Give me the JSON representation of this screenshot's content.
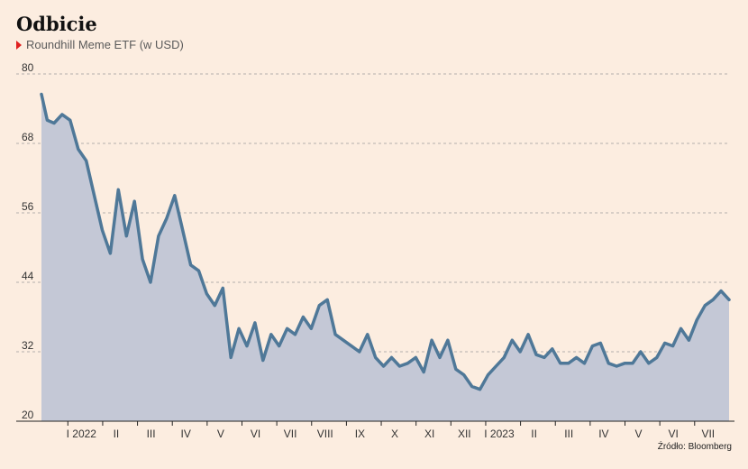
{
  "title": "Odbicie",
  "subtitle": "Roundhill Meme ETF (w USD)",
  "source": "Źródło: Bloomberg",
  "colors": {
    "background": "#fcede0",
    "line": "#4f7898",
    "area": "#c4c8d6",
    "legend_marker": "#e02020",
    "grid": "#9a9a9a"
  },
  "chart_data": {
    "type": "area",
    "ylim": [
      20,
      80
    ],
    "yticks": [
      "80",
      "68",
      "56",
      "44",
      "32",
      "20"
    ],
    "xticks": [
      "I 2022",
      "II",
      "III",
      "IV",
      "V",
      "VI",
      "VII",
      "VIII",
      "IX",
      "X",
      "XI",
      "XII",
      "I 2023",
      "II",
      "III",
      "IV",
      "V",
      "VI",
      "VII"
    ],
    "grid": true,
    "x": [
      "2021-12-09",
      "2021-12-14",
      "2021-12-20",
      "2021-12-27",
      "2022-01-03",
      "2022-01-10",
      "2022-01-17",
      "2022-01-24",
      "2022-01-31",
      "2022-02-07",
      "2022-02-14",
      "2022-02-21",
      "2022-02-28",
      "2022-03-07",
      "2022-03-14",
      "2022-03-21",
      "2022-03-28",
      "2022-04-04",
      "2022-04-11",
      "2022-04-18",
      "2022-04-25",
      "2022-05-02",
      "2022-05-09",
      "2022-05-16",
      "2022-05-23",
      "2022-05-30",
      "2022-06-06",
      "2022-06-13",
      "2022-06-20",
      "2022-06-27",
      "2022-07-04",
      "2022-07-11",
      "2022-07-18",
      "2022-07-25",
      "2022-08-01",
      "2022-08-08",
      "2022-08-15",
      "2022-08-22",
      "2022-08-29",
      "2022-09-05",
      "2022-09-12",
      "2022-09-19",
      "2022-09-26",
      "2022-10-03",
      "2022-10-10",
      "2022-10-17",
      "2022-10-24",
      "2022-10-31",
      "2022-11-07",
      "2022-11-14",
      "2022-11-21",
      "2022-11-28",
      "2022-12-05",
      "2022-12-12",
      "2022-12-19",
      "2022-12-26",
      "2023-01-02",
      "2023-01-09",
      "2023-01-16",
      "2023-01-23",
      "2023-01-30",
      "2023-02-06",
      "2023-02-13",
      "2023-02-20",
      "2023-02-27",
      "2023-03-06",
      "2023-03-13",
      "2023-03-20",
      "2023-03-27",
      "2023-04-03",
      "2023-04-10",
      "2023-04-17",
      "2023-04-24",
      "2023-05-01",
      "2023-05-08",
      "2023-05-15",
      "2023-05-22",
      "2023-05-29",
      "2023-06-05",
      "2023-06-12",
      "2023-06-19",
      "2023-06-26",
      "2023-07-03",
      "2023-07-10",
      "2023-07-17",
      "2023-07-24",
      "2023-07-31"
    ],
    "series": [
      {
        "values": [
          76.5,
          72,
          71.5,
          73,
          72,
          67,
          65,
          59,
          53,
          49,
          60,
          52,
          58,
          48,
          44,
          52,
          55,
          59,
          53,
          47,
          46,
          42,
          40,
          43,
          31,
          36,
          33,
          37,
          30.5,
          35,
          33,
          36,
          35,
          38,
          36,
          40,
          41,
          35,
          34,
          33,
          32,
          35,
          31,
          29.5,
          31,
          29.5,
          30,
          31,
          28.5,
          34,
          31,
          34,
          29,
          28,
          26,
          25.5,
          28,
          29.5,
          31,
          34,
          32,
          35,
          31.5,
          31,
          32.5,
          30,
          30,
          31,
          30,
          33,
          33.5,
          30,
          29.5,
          30,
          30,
          32,
          30,
          31,
          33.5,
          33,
          36,
          34,
          37.5,
          40,
          41,
          42.5,
          41
        ]
      }
    ]
  }
}
